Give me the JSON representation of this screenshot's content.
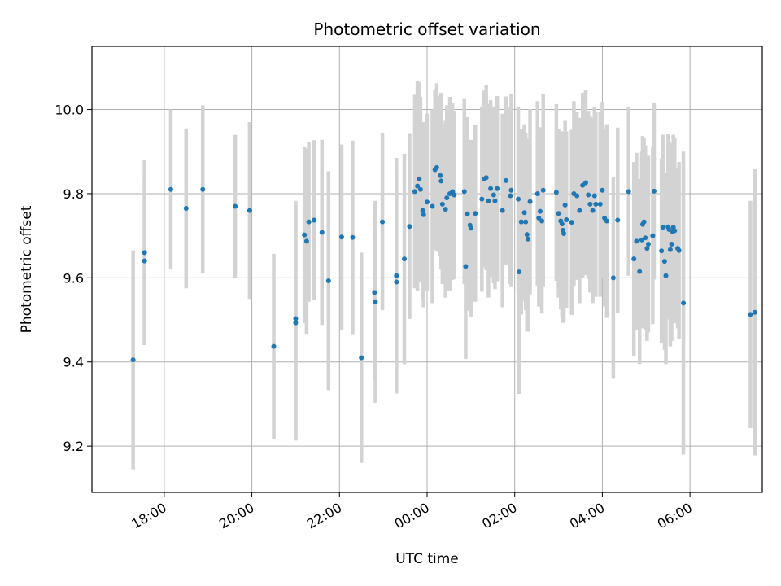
{
  "chart_data": {
    "type": "scatter",
    "title": "Photometric offset variation",
    "xlabel": "UTC time",
    "ylabel": "Photometric offset",
    "x_unit": "hours since 17:00 UTC",
    "xlim": [
      -0.65,
      14.65
    ],
    "ylim": [
      9.09,
      10.15
    ],
    "grid": true,
    "x_ticks": [
      {
        "value": 1,
        "label": "18:00"
      },
      {
        "value": 3,
        "label": "20:00"
      },
      {
        "value": 5,
        "label": "22:00"
      },
      {
        "value": 7,
        "label": "00:00"
      },
      {
        "value": 9,
        "label": "02:00"
      },
      {
        "value": 11,
        "label": "04:00"
      },
      {
        "value": 13,
        "label": "06:00"
      }
    ],
    "y_ticks": [
      {
        "value": 9.2,
        "label": "9.2"
      },
      {
        "value": 9.4,
        "label": "9.4"
      },
      {
        "value": 9.6,
        "label": "9.6"
      },
      {
        "value": 9.8,
        "label": "9.8"
      },
      {
        "value": 10.0,
        "label": "10.0"
      }
    ],
    "colors": {
      "point": "#1f77b4",
      "errorbar": "#d3d3d3",
      "grid": "#b0b0b0"
    },
    "series": [
      {
        "name": "offset",
        "points": [
          [
            0.29,
            9.405,
            0.26
          ],
          [
            0.55,
            9.66,
            0.22
          ],
          [
            0.55,
            9.64,
            0.2
          ],
          [
            1.15,
            9.81,
            0.19
          ],
          [
            1.5,
            9.765,
            0.19
          ],
          [
            1.88,
            9.81,
            0.2
          ],
          [
            2.62,
            9.77,
            0.17
          ],
          [
            2.95,
            9.76,
            0.21
          ],
          [
            3.5,
            9.437,
            0.22
          ],
          [
            4.0,
            9.503,
            0.28
          ],
          [
            4.0,
            9.493,
            0.28
          ],
          [
            4.2,
            9.702,
            0.21
          ],
          [
            4.25,
            9.687,
            0.22
          ],
          [
            4.3,
            9.733,
            0.19
          ],
          [
            4.42,
            9.737,
            0.19
          ],
          [
            4.6,
            9.708,
            0.22
          ],
          [
            4.75,
            9.593,
            0.26
          ],
          [
            5.05,
            9.697,
            0.22
          ],
          [
            5.3,
            9.696,
            0.23
          ],
          [
            5.5,
            9.41,
            0.25
          ],
          [
            5.8,
            9.565,
            0.21
          ],
          [
            5.82,
            9.543,
            0.24
          ],
          [
            5.98,
            9.733,
            0.21
          ],
          [
            6.3,
            9.605,
            0.28
          ],
          [
            6.3,
            9.59,
            0.26
          ],
          [
            6.48,
            9.645,
            0.25
          ],
          [
            6.6,
            9.722,
            0.22
          ],
          [
            6.72,
            9.805,
            0.23
          ],
          [
            6.78,
            9.818,
            0.25
          ],
          [
            6.82,
            9.835,
            0.23
          ],
          [
            6.85,
            9.81,
            0.22
          ],
          [
            6.9,
            9.76,
            0.21
          ],
          [
            6.92,
            9.75,
            0.22
          ],
          [
            7.0,
            9.78,
            0.21
          ],
          [
            7.12,
            9.77,
            0.23
          ],
          [
            7.18,
            9.857,
            0.19
          ],
          [
            7.22,
            9.862,
            0.2
          ],
          [
            7.3,
            9.843,
            0.19
          ],
          [
            7.32,
            9.83,
            0.21
          ],
          [
            7.35,
            9.775,
            0.19
          ],
          [
            7.42,
            9.763,
            0.21
          ],
          [
            7.45,
            9.79,
            0.22
          ],
          [
            7.52,
            9.8,
            0.23
          ],
          [
            7.58,
            9.805,
            0.21
          ],
          [
            7.62,
            9.797,
            0.2
          ],
          [
            7.85,
            9.805,
            0.22
          ],
          [
            7.88,
            9.627,
            0.22
          ],
          [
            7.92,
            9.752,
            0.23
          ],
          [
            7.98,
            9.725,
            0.19
          ],
          [
            8.0,
            9.718,
            0.21
          ],
          [
            8.1,
            9.753,
            0.21
          ],
          [
            8.25,
            9.787,
            0.22
          ],
          [
            8.3,
            9.835,
            0.21
          ],
          [
            8.35,
            9.838,
            0.22
          ],
          [
            8.4,
            9.783,
            0.23
          ],
          [
            8.45,
            9.812,
            0.21
          ],
          [
            8.52,
            9.797,
            0.21
          ],
          [
            8.55,
            9.783,
            0.21
          ],
          [
            8.6,
            9.812,
            0.22
          ],
          [
            8.72,
            9.76,
            0.23
          ],
          [
            8.8,
            9.831,
            0.2
          ],
          [
            8.9,
            9.795,
            0.21
          ],
          [
            8.92,
            9.808,
            0.23
          ],
          [
            9.08,
            9.787,
            0.22
          ],
          [
            9.1,
            9.614,
            0.29
          ],
          [
            9.15,
            9.733,
            0.22
          ],
          [
            9.22,
            9.755,
            0.21
          ],
          [
            9.25,
            9.733,
            0.21
          ],
          [
            9.28,
            9.703,
            0.23
          ],
          [
            9.3,
            9.692,
            0.22
          ],
          [
            9.35,
            9.781,
            0.22
          ],
          [
            9.52,
            9.8,
            0.22
          ],
          [
            9.55,
            9.742,
            0.21
          ],
          [
            9.58,
            9.758,
            0.2
          ],
          [
            9.62,
            9.735,
            0.22
          ],
          [
            9.65,
            9.808,
            0.23
          ],
          [
            9.95,
            9.803,
            0.21
          ],
          [
            10.0,
            9.753,
            0.2
          ],
          [
            10.05,
            9.735,
            0.21
          ],
          [
            10.08,
            9.728,
            0.22
          ],
          [
            10.1,
            9.713,
            0.22
          ],
          [
            10.12,
            9.705,
            0.21
          ],
          [
            10.15,
            9.773,
            0.2
          ],
          [
            10.18,
            9.738,
            0.21
          ],
          [
            10.3,
            9.732,
            0.22
          ],
          [
            10.35,
            9.8,
            0.22
          ],
          [
            10.42,
            9.795,
            0.2
          ],
          [
            10.48,
            9.76,
            0.22
          ],
          [
            10.55,
            9.82,
            0.22
          ],
          [
            10.62,
            9.826,
            0.22
          ],
          [
            10.68,
            9.797,
            0.2
          ],
          [
            10.72,
            9.775,
            0.21
          ],
          [
            10.78,
            9.76,
            0.22
          ],
          [
            10.82,
            9.795,
            0.21
          ],
          [
            10.85,
            9.775,
            0.22
          ],
          [
            10.95,
            9.775,
            0.22
          ],
          [
            11.0,
            9.808,
            0.21
          ],
          [
            11.05,
            9.742,
            0.21
          ],
          [
            11.1,
            9.735,
            0.23
          ],
          [
            11.25,
            9.6,
            0.24
          ],
          [
            11.35,
            9.737,
            0.22
          ],
          [
            11.6,
            9.805,
            0.2
          ],
          [
            11.72,
            9.645,
            0.23
          ],
          [
            11.78,
            9.687,
            0.21
          ],
          [
            11.85,
            9.615,
            0.22
          ],
          [
            11.9,
            9.69,
            0.21
          ],
          [
            11.92,
            9.727,
            0.21
          ],
          [
            11.95,
            9.733,
            0.2
          ],
          [
            11.98,
            9.695,
            0.22
          ],
          [
            12.02,
            9.67,
            0.22
          ],
          [
            12.05,
            9.68,
            0.21
          ],
          [
            12.15,
            9.7,
            0.21
          ],
          [
            12.18,
            9.806,
            0.21
          ],
          [
            12.35,
            9.664,
            0.22
          ],
          [
            12.38,
            9.72,
            0.22
          ],
          [
            12.42,
            9.639,
            0.21
          ],
          [
            12.45,
            9.605,
            0.21
          ],
          [
            12.5,
            9.721,
            0.22
          ],
          [
            12.52,
            9.715,
            0.21
          ],
          [
            12.55,
            9.667,
            0.23
          ],
          [
            12.58,
            9.68,
            0.23
          ],
          [
            12.6,
            9.71,
            0.21
          ],
          [
            12.62,
            9.72,
            0.22
          ],
          [
            12.65,
            9.712,
            0.22
          ],
          [
            12.72,
            9.67,
            0.19
          ],
          [
            12.75,
            9.665,
            0.21
          ],
          [
            12.85,
            9.54,
            0.36
          ],
          [
            14.38,
            9.513,
            0.27
          ],
          [
            14.48,
            9.518,
            0.34
          ]
        ]
      }
    ]
  }
}
